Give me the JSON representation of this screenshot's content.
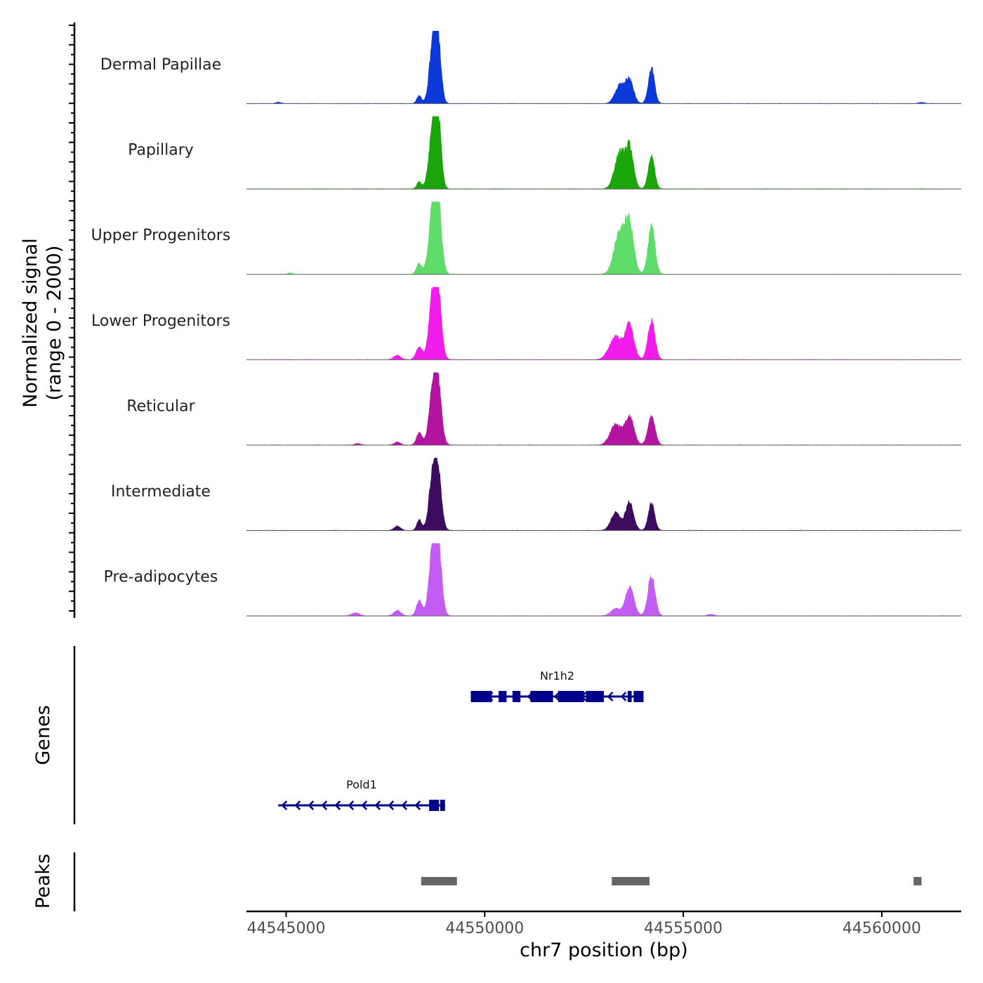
{
  "chart_data": {
    "type": "area",
    "title": "",
    "ylabel_line1": "Normalized signal",
    "ylabel_line2": "(range 0 - 2000)",
    "xlabel": "chr7 position (bp)",
    "chromosome": "chr7",
    "xlim": [
      44544000,
      44562000
    ],
    "ylim": [
      0,
      2000
    ],
    "x_ticks": [
      44545000,
      44550000,
      44555000,
      44560000
    ],
    "x_tick_labels": [
      "44545000",
      "44550000",
      "44555000",
      "44560000"
    ],
    "coverage_peaks_note": "position, height (0-2000), width in bp",
    "series": [
      {
        "name": "Dermal Papillae",
        "color": "#0B3AD8",
        "peaks": [
          [
            44548350,
            220,
            60
          ],
          [
            44548700,
            1800,
            90
          ],
          [
            44548830,
            1500,
            80
          ],
          [
            44553400,
            500,
            120
          ],
          [
            44553650,
            650,
            100
          ],
          [
            44554200,
            1000,
            80
          ],
          [
            44544800,
            40,
            60
          ],
          [
            44561000,
            30,
            80
          ]
        ]
      },
      {
        "name": "Papillary",
        "color": "#1AA60A",
        "peaks": [
          [
            44548350,
            200,
            60
          ],
          [
            44548700,
            1800,
            100
          ],
          [
            44548830,
            1600,
            80
          ],
          [
            44553400,
            1000,
            130
          ],
          [
            44553650,
            1100,
            100
          ],
          [
            44554200,
            950,
            80
          ]
        ]
      },
      {
        "name": "Upper Progenitors",
        "color": "#5FDC6A",
        "peaks": [
          [
            44548350,
            300,
            70
          ],
          [
            44548700,
            2000,
            100
          ],
          [
            44548830,
            1700,
            90
          ],
          [
            44553400,
            1200,
            140
          ],
          [
            44553650,
            1300,
            110
          ],
          [
            44554200,
            1350,
            90
          ],
          [
            44545100,
            40,
            60
          ]
        ]
      },
      {
        "name": "Lower Progenitors",
        "color": "#F21CEB",
        "peaks": [
          [
            44547800,
            120,
            90
          ],
          [
            44548350,
            350,
            80
          ],
          [
            44548700,
            1800,
            100
          ],
          [
            44548830,
            1500,
            90
          ],
          [
            44553300,
            650,
            160
          ],
          [
            44553650,
            950,
            110
          ],
          [
            44554200,
            1100,
            90
          ]
        ]
      },
      {
        "name": "Reticular",
        "color": "#B2149F",
        "peaks": [
          [
            44547800,
            80,
            80
          ],
          [
            44548350,
            350,
            70
          ],
          [
            44548700,
            1550,
            100
          ],
          [
            44548830,
            1400,
            90
          ],
          [
            44553300,
            600,
            140
          ],
          [
            44553650,
            800,
            110
          ],
          [
            44554200,
            850,
            90
          ],
          [
            44546800,
            40,
            80
          ]
        ]
      },
      {
        "name": "Intermediate",
        "color": "#3E0C5E",
        "peaks": [
          [
            44547800,
            120,
            80
          ],
          [
            44548350,
            300,
            60
          ],
          [
            44548700,
            1550,
            100
          ],
          [
            44548830,
            1300,
            90
          ],
          [
            44553300,
            500,
            120
          ],
          [
            44553650,
            800,
            100
          ],
          [
            44554200,
            800,
            80
          ]
        ]
      },
      {
        "name": "Pre-adipocytes",
        "color": "#C25CF2",
        "peaks": [
          [
            44546750,
            80,
            100
          ],
          [
            44547800,
            150,
            90
          ],
          [
            44548350,
            450,
            70
          ],
          [
            44548700,
            1900,
            100
          ],
          [
            44548830,
            1700,
            90
          ],
          [
            44553300,
            200,
            120
          ],
          [
            44553650,
            800,
            110
          ],
          [
            44554200,
            1150,
            90
          ],
          [
            44555700,
            40,
            80
          ]
        ]
      }
    ],
    "genes_track_label": "Genes",
    "genes": [
      {
        "name": "Nr1h2",
        "start": 44549650,
        "end": 44554000,
        "strand": "-",
        "color": "#00008B",
        "exons": [
          [
            44549650,
            44550180
          ],
          [
            44550350,
            44550550
          ],
          [
            44550700,
            44550900
          ],
          [
            44551150,
            44551720
          ],
          [
            44551850,
            44552500
          ],
          [
            44552550,
            44553000
          ],
          [
            44553600,
            44553700
          ],
          [
            44553750,
            44554000
          ]
        ]
      },
      {
        "name": "Pold1",
        "start": 44544800,
        "end": 44549000,
        "strand": "-",
        "color": "#00008B",
        "exons": [
          [
            44548600,
            44548850
          ],
          [
            44548880,
            44549000
          ]
        ]
      }
    ],
    "peaks_track_label": "Peaks",
    "called_peaks": [
      [
        44548400,
        44549300
      ],
      [
        44553200,
        44554150
      ],
      [
        44560800,
        44561000
      ]
    ],
    "peaks_color": "#666666"
  }
}
